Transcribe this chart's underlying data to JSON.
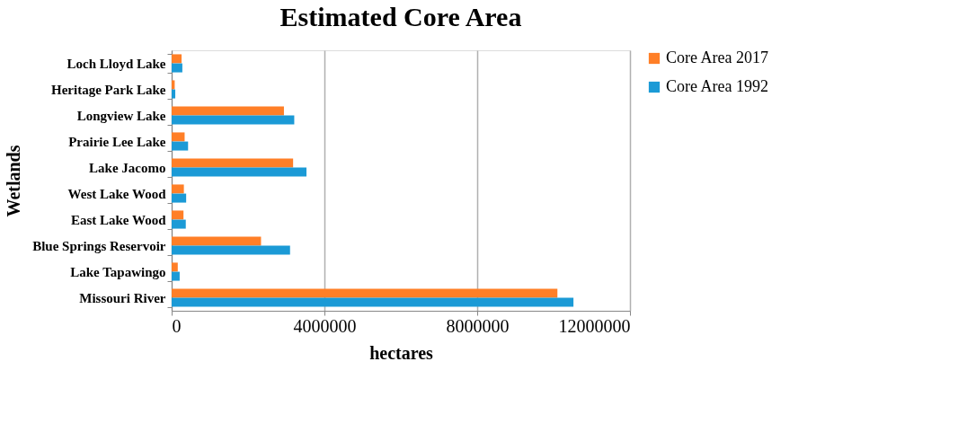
{
  "chart_data": {
    "type": "bar",
    "orientation": "horizontal",
    "title": "Estimated Core Area",
    "xlabel": "hectares",
    "ylabel": "Wetlands",
    "categories": [
      "Loch Lloyd Lake",
      "Heritage Park Lake",
      "Longview Lake",
      "Prairie Lee Lake",
      "Lake Jacomo",
      "West Lake Wood",
      "East Lake Wood",
      "Blue Springs Reservoir",
      "Lake Tapawingo",
      "Missouri River"
    ],
    "series": [
      {
        "name": "Core Area 2017",
        "color": "#ff7f27",
        "values": [
          260000,
          80000,
          2940000,
          340000,
          3180000,
          320000,
          310000,
          2340000,
          160000,
          10100000
        ]
      },
      {
        "name": "Core Area 1992",
        "color": "#1b9ad6",
        "values": [
          280000,
          95000,
          3210000,
          430000,
          3530000,
          380000,
          370000,
          3100000,
          210000,
          10520000
        ]
      }
    ],
    "xlim": [
      0,
      12000000
    ],
    "xticks": [
      0,
      4000000,
      8000000,
      12000000
    ],
    "grid": "x",
    "legend": "right"
  }
}
